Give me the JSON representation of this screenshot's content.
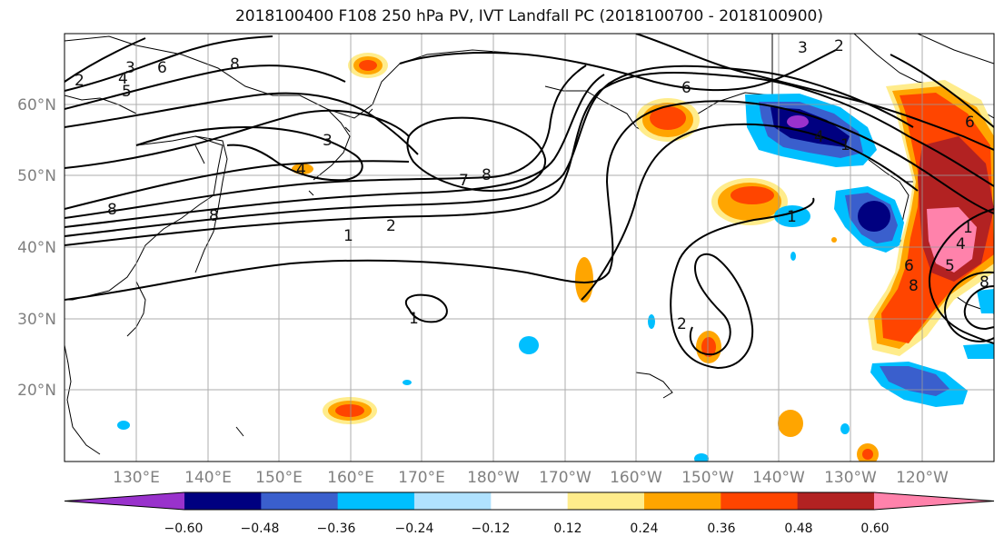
{
  "title": "2018100400 F108 250 hPa PV, IVT Landfall PC (2018100700 - 2018100900)",
  "lat_labels": [
    "60°N",
    "50°N",
    "40°N",
    "30°N",
    "20°N"
  ],
  "lon_labels": [
    "130°E",
    "140°E",
    "150°E",
    "160°E",
    "170°E",
    "180°W",
    "170°W",
    "160°W",
    "150°W",
    "140°W",
    "130°W",
    "120°W"
  ],
  "colorbar": {
    "colors": [
      "#9932cc",
      "#000080",
      "#3a5fcd",
      "#00bfff",
      "#b0e2ff",
      "#ffffff",
      "#ffec8b",
      "#ffa500",
      "#ff4500",
      "#b22222",
      "#ff82ab"
    ],
    "ticks": [
      "−0.60",
      "−0.48",
      "−0.36",
      "−0.24",
      "−0.12",
      "0.12",
      "0.24",
      "0.36",
      "0.48",
      "0.60"
    ]
  },
  "contour_labels": [
    "2",
    "3",
    "4",
    "5",
    "6",
    "8",
    "8",
    "3",
    "4",
    "8",
    "7",
    "8",
    "2",
    "1",
    "1",
    "6",
    "2",
    "1",
    "1",
    "2",
    "3",
    "4",
    "6",
    "4",
    "1",
    "8",
    "5",
    "6",
    "8"
  ]
}
